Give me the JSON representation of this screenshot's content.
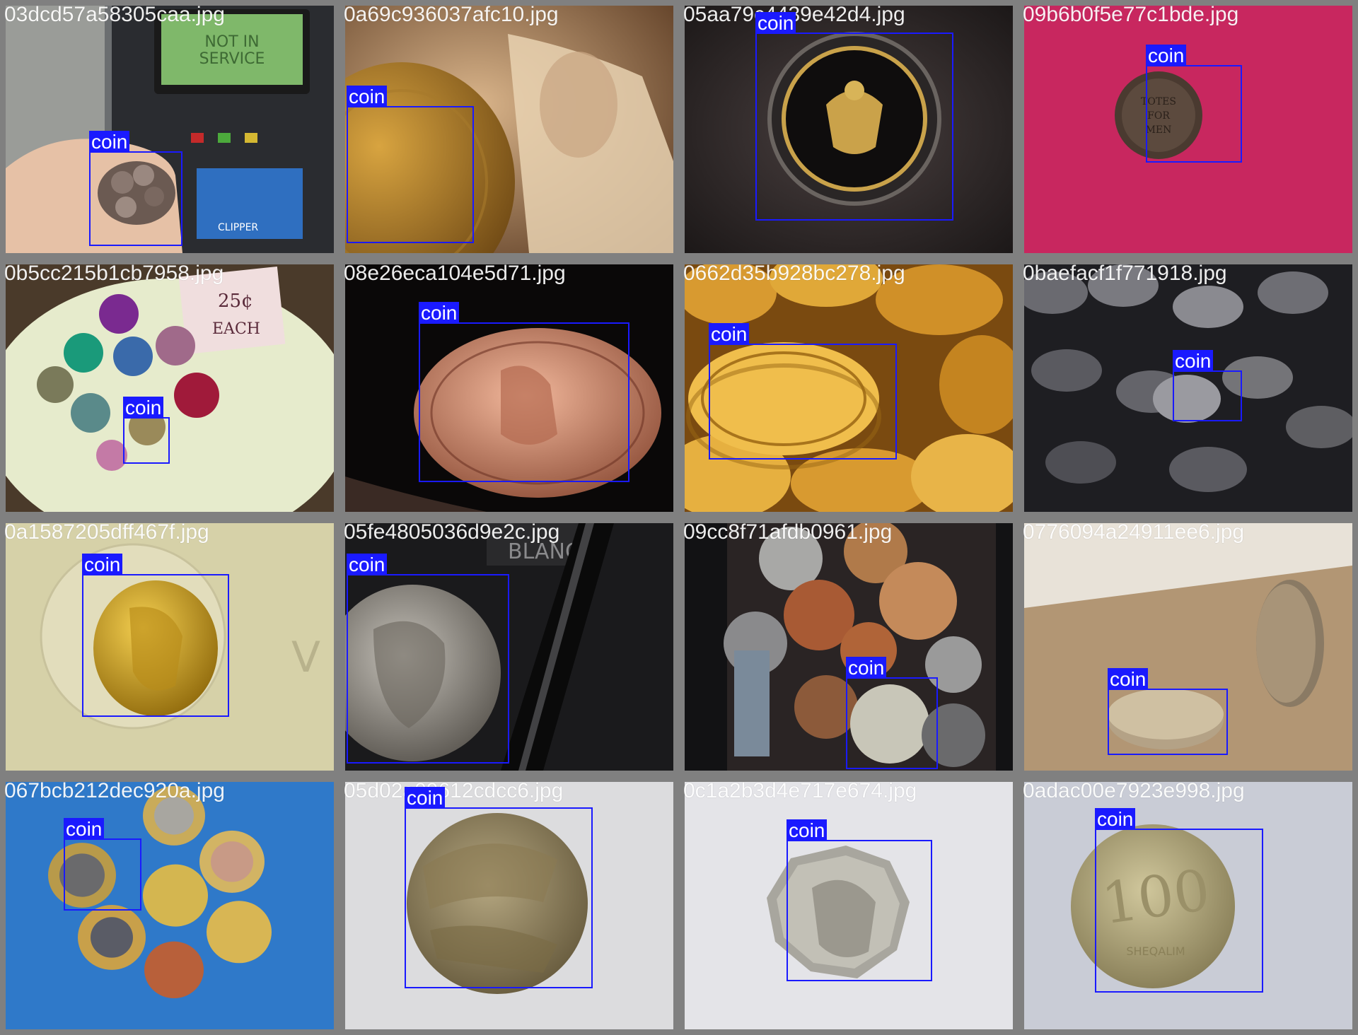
{
  "colors": {
    "box": "#1a1aff",
    "label_text": "#ffffff",
    "grid_bg": "#808080"
  },
  "tiles": [
    {
      "filename": "03dcd57a58305caa.jpg",
      "label": "coin",
      "scene": "hand at transit ticket machine"
    },
    {
      "filename": "0a69c936037afc10.jpg",
      "label": "coin",
      "scene": "gold coin on banknote"
    },
    {
      "filename": "05aa79c4439e42d4.jpg",
      "label": "coin",
      "scene": "half dollar in capsule"
    },
    {
      "filename": "09b6b0f5e77c1bde.jpg",
      "label": "coin",
      "scene": "token on pink fabric"
    },
    {
      "filename": "0b5cc215b1cb7958.jpg",
      "label": "coin",
      "scene": "bowl of tokens with sign"
    },
    {
      "filename": "08e26eca104e5d71.jpg",
      "label": "coin",
      "scene": "quarter dollar"
    },
    {
      "filename": "0662d35b928bc278.jpg",
      "label": "coin",
      "scene": "pile of gold coins"
    },
    {
      "filename": "0baefacf1f771918.jpg",
      "label": "coin",
      "scene": "pile of silver coins"
    },
    {
      "filename": "0a1587205dff467f.jpg",
      "label": "coin",
      "scene": "roman gold coin"
    },
    {
      "filename": "05fe4805036d9e2c.jpg",
      "label": "coin",
      "scene": "silver dollar and pen"
    },
    {
      "filename": "09cc8f71afdb0961.jpg",
      "label": "coin",
      "scene": "mixed coins in tray"
    },
    {
      "filename": "0776094a24911ee6.jpg",
      "label": "coin",
      "scene": "coins on table"
    },
    {
      "filename": "067bcb212dec920a.jpg",
      "label": "coin",
      "scene": "euro coins on blue"
    },
    {
      "filename": "05d02a09612cdcc6.jpg",
      "label": "coin",
      "scene": "bronze medal"
    },
    {
      "filename": "0c1a2b3d4e717e674.jpg",
      "label": "coin",
      "scene": "fifty pence coin"
    },
    {
      "filename": "0adac00e7923e998.jpg",
      "label": "coin",
      "scene": "100 sheqalim coin"
    }
  ]
}
